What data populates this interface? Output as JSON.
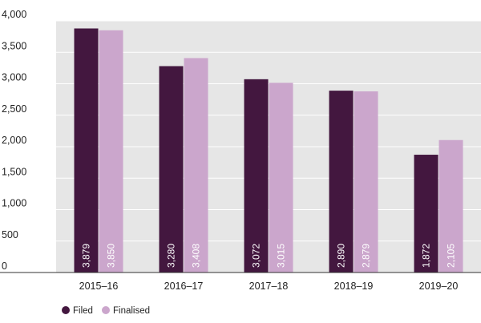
{
  "chart_data": {
    "type": "bar",
    "title": "",
    "xlabel": "",
    "ylabel": "",
    "categories": [
      "2015–16",
      "2016–17",
      "2017–18",
      "2018–19",
      "2019–20"
    ],
    "series": [
      {
        "name": "Filed",
        "color": "#43173f",
        "values": [
          3879,
          3280,
          3072,
          2890,
          1872
        ]
      },
      {
        "name": "Finalised",
        "color": "#cba6cc",
        "values": [
          3850,
          3408,
          3015,
          2879,
          2105
        ]
      }
    ],
    "data_labels": [
      [
        "3,879",
        "3,280",
        "3,072",
        "2,890",
        "1,872"
      ],
      [
        "3,850",
        "3,408",
        "3,015",
        "2,879",
        "2,105"
      ]
    ],
    "ylim": [
      0,
      4000
    ],
    "yticks": [
      0,
      500,
      1000,
      1500,
      2000,
      2500,
      3000,
      3500,
      4000
    ],
    "ytick_labels": [
      "0",
      "500",
      "1,000",
      "1,500",
      "2,000",
      "2,500",
      "3,000",
      "3,500",
      "4,000"
    ],
    "grid": true,
    "plot_background": "#e6e6e6",
    "legend_position": "bottom-left"
  }
}
